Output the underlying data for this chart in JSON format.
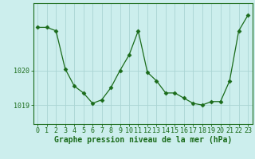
{
  "x": [
    0,
    1,
    2,
    3,
    4,
    5,
    6,
    7,
    8,
    9,
    10,
    11,
    12,
    13,
    14,
    15,
    16,
    17,
    18,
    19,
    20,
    21,
    22,
    23
  ],
  "y": [
    1021.25,
    1021.25,
    1021.15,
    1020.05,
    1019.55,
    1019.35,
    1019.05,
    1019.15,
    1019.5,
    1020.0,
    1020.45,
    1021.15,
    1019.95,
    1019.7,
    1019.35,
    1019.35,
    1019.2,
    1019.05,
    1019.0,
    1019.1,
    1019.1,
    1019.7,
    1021.15,
    1021.6
  ],
  "line_color": "#1a6b1a",
  "marker": "D",
  "markersize": 2.5,
  "background_color": "#cceeed",
  "grid_color": "#aad4d3",
  "xlabel": "Graphe pression niveau de la mer (hPa)",
  "xlabel_fontsize": 7,
  "tick_fontsize": 6,
  "ytick_labels": [
    "1019",
    "1020"
  ],
  "ytick_values": [
    1019.0,
    1020.0
  ],
  "ylim": [
    1018.45,
    1021.95
  ],
  "xlim": [
    -0.5,
    23.5
  ],
  "figsize": [
    3.2,
    2.0
  ],
  "dpi": 100
}
